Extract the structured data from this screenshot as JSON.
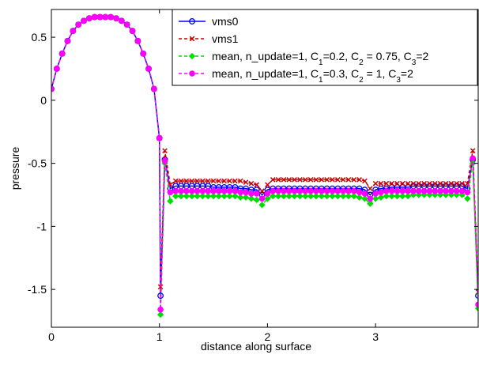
{
  "chart_data": {
    "type": "line",
    "title": "",
    "xlabel": "distance along surface",
    "ylabel": "pressure",
    "xlim": [
      0,
      3.95
    ],
    "ylim": [
      -1.8,
      0.72
    ],
    "xticks": [
      0,
      1,
      2,
      3
    ],
    "xtick_labels": [
      "0",
      "1",
      "2",
      "3"
    ],
    "yticks": [
      0.5,
      0,
      -0.5,
      -1,
      -1.5
    ],
    "ytick_labels": [
      "0.5",
      "0",
      "-0.5",
      "-1",
      "-1.5"
    ],
    "grid": false,
    "legend_position": "top-right",
    "legend": [
      {
        "text_pre": "vms0",
        "c1": "",
        "c2": "",
        "c3": ""
      },
      {
        "text_pre": "vms1",
        "c1": "",
        "c2": "",
        "c3": ""
      },
      {
        "text_pre": "mean, n_update=1, C",
        "c1": "=0.2, C",
        "c2": " = 0.75, C",
        "c3": "=2"
      },
      {
        "text_pre": "mean, n_update=1, C",
        "c1": "=0.3, C",
        "c2": " = 1, C",
        "c3": "=2"
      }
    ],
    "subscripts": [
      "1",
      "2",
      "3"
    ],
    "series": [
      {
        "name": "vms0",
        "color": "#0000ff",
        "dash": "solid",
        "marker": "circle-open",
        "x": [
          0,
          0.05,
          0.1,
          0.15,
          0.2,
          0.25,
          0.3,
          0.35,
          0.4,
          0.45,
          0.5,
          0.55,
          0.6,
          0.65,
          0.7,
          0.75,
          0.8,
          0.85,
          0.9,
          0.95,
          1.0,
          1.01,
          1.05,
          1.1,
          1.15,
          1.2,
          1.25,
          1.3,
          1.35,
          1.4,
          1.45,
          1.5,
          1.55,
          1.6,
          1.65,
          1.7,
          1.75,
          1.8,
          1.85,
          1.9,
          1.95,
          2.0,
          2.05,
          2.1,
          2.15,
          2.2,
          2.25,
          2.3,
          2.35,
          2.4,
          2.45,
          2.5,
          2.55,
          2.6,
          2.65,
          2.7,
          2.75,
          2.8,
          2.85,
          2.9,
          2.95,
          3.0,
          3.05,
          3.1,
          3.15,
          3.2,
          3.25,
          3.3,
          3.35,
          3.4,
          3.45,
          3.5,
          3.55,
          3.6,
          3.65,
          3.7,
          3.75,
          3.8,
          3.85,
          3.9,
          3.95
        ],
        "y": [
          0.09,
          0.25,
          0.37,
          0.47,
          0.55,
          0.6,
          0.63,
          0.65,
          0.66,
          0.66,
          0.66,
          0.66,
          0.65,
          0.63,
          0.6,
          0.55,
          0.47,
          0.37,
          0.25,
          0.09,
          -0.3,
          -1.55,
          -0.47,
          -0.7,
          -0.68,
          -0.68,
          -0.68,
          -0.68,
          -0.68,
          -0.68,
          -0.68,
          -0.69,
          -0.69,
          -0.69,
          -0.69,
          -0.69,
          -0.7,
          -0.7,
          -0.71,
          -0.71,
          -0.75,
          -0.71,
          -0.7,
          -0.7,
          -0.7,
          -0.7,
          -0.7,
          -0.7,
          -0.7,
          -0.7,
          -0.7,
          -0.7,
          -0.7,
          -0.7,
          -0.7,
          -0.7,
          -0.7,
          -0.7,
          -0.7,
          -0.71,
          -0.75,
          -0.71,
          -0.7,
          -0.7,
          -0.69,
          -0.69,
          -0.69,
          -0.69,
          -0.68,
          -0.68,
          -0.68,
          -0.68,
          -0.68,
          -0.68,
          -0.68,
          -0.68,
          -0.68,
          -0.68,
          -0.7,
          -0.47,
          -1.55
        ]
      },
      {
        "name": "vms1",
        "color": "#cc0000",
        "dash": "4,3",
        "marker": "x",
        "x": [
          0,
          0.05,
          0.1,
          0.15,
          0.2,
          0.25,
          0.3,
          0.35,
          0.4,
          0.45,
          0.5,
          0.55,
          0.6,
          0.65,
          0.7,
          0.75,
          0.8,
          0.85,
          0.9,
          0.95,
          1.0,
          1.01,
          1.05,
          1.1,
          1.15,
          1.2,
          1.25,
          1.3,
          1.35,
          1.4,
          1.45,
          1.5,
          1.55,
          1.6,
          1.65,
          1.7,
          1.75,
          1.8,
          1.85,
          1.9,
          1.95,
          2.0,
          2.05,
          2.1,
          2.15,
          2.2,
          2.25,
          2.3,
          2.35,
          2.4,
          2.45,
          2.5,
          2.55,
          2.6,
          2.65,
          2.7,
          2.75,
          2.8,
          2.85,
          2.9,
          2.95,
          3.0,
          3.05,
          3.1,
          3.15,
          3.2,
          3.25,
          3.3,
          3.35,
          3.4,
          3.45,
          3.5,
          3.55,
          3.6,
          3.65,
          3.7,
          3.75,
          3.8,
          3.85,
          3.9,
          3.95
        ],
        "y": [
          0.09,
          0.25,
          0.37,
          0.47,
          0.55,
          0.6,
          0.63,
          0.65,
          0.66,
          0.66,
          0.66,
          0.66,
          0.65,
          0.63,
          0.6,
          0.55,
          0.47,
          0.37,
          0.25,
          0.09,
          -0.3,
          -1.48,
          -0.4,
          -0.67,
          -0.64,
          -0.64,
          -0.64,
          -0.64,
          -0.64,
          -0.64,
          -0.64,
          -0.64,
          -0.64,
          -0.64,
          -0.64,
          -0.64,
          -0.64,
          -0.65,
          -0.66,
          -0.67,
          -0.72,
          -0.67,
          -0.63,
          -0.63,
          -0.63,
          -0.63,
          -0.63,
          -0.63,
          -0.63,
          -0.63,
          -0.63,
          -0.63,
          -0.63,
          -0.63,
          -0.63,
          -0.63,
          -0.63,
          -0.63,
          -0.63,
          -0.64,
          -0.7,
          -0.66,
          -0.66,
          -0.66,
          -0.66,
          -0.66,
          -0.66,
          -0.66,
          -0.66,
          -0.66,
          -0.66,
          -0.66,
          -0.66,
          -0.66,
          -0.66,
          -0.66,
          -0.66,
          -0.66,
          -0.66,
          -0.4,
          -1.52
        ]
      },
      {
        "name": "mean, n_update=1, C1=0.2, C2 = 0.75, C3=2",
        "color": "#00dd00",
        "dash": "4,3",
        "marker": "diamond",
        "x": [
          0,
          0.05,
          0.1,
          0.15,
          0.2,
          0.25,
          0.3,
          0.35,
          0.4,
          0.45,
          0.5,
          0.55,
          0.6,
          0.65,
          0.7,
          0.75,
          0.8,
          0.85,
          0.9,
          0.95,
          1.0,
          1.01,
          1.05,
          1.1,
          1.15,
          1.2,
          1.25,
          1.3,
          1.35,
          1.4,
          1.45,
          1.5,
          1.55,
          1.6,
          1.65,
          1.7,
          1.75,
          1.8,
          1.85,
          1.9,
          1.95,
          2.0,
          2.05,
          2.1,
          2.15,
          2.2,
          2.25,
          2.3,
          2.35,
          2.4,
          2.45,
          2.5,
          2.55,
          2.6,
          2.65,
          2.7,
          2.75,
          2.8,
          2.85,
          2.9,
          2.95,
          3.0,
          3.05,
          3.1,
          3.15,
          3.2,
          3.25,
          3.3,
          3.35,
          3.4,
          3.45,
          3.5,
          3.55,
          3.6,
          3.65,
          3.7,
          3.75,
          3.8,
          3.85,
          3.9,
          3.95
        ],
        "y": [
          0.09,
          0.25,
          0.37,
          0.47,
          0.55,
          0.6,
          0.63,
          0.65,
          0.66,
          0.66,
          0.66,
          0.66,
          0.65,
          0.63,
          0.6,
          0.55,
          0.47,
          0.37,
          0.25,
          0.09,
          -0.3,
          -1.7,
          -0.5,
          -0.8,
          -0.76,
          -0.76,
          -0.76,
          -0.76,
          -0.76,
          -0.76,
          -0.76,
          -0.76,
          -0.76,
          -0.76,
          -0.76,
          -0.76,
          -0.77,
          -0.77,
          -0.78,
          -0.79,
          -0.83,
          -0.78,
          -0.76,
          -0.76,
          -0.76,
          -0.76,
          -0.76,
          -0.76,
          -0.76,
          -0.76,
          -0.76,
          -0.76,
          -0.76,
          -0.76,
          -0.76,
          -0.76,
          -0.76,
          -0.76,
          -0.77,
          -0.78,
          -0.82,
          -0.78,
          -0.77,
          -0.76,
          -0.76,
          -0.76,
          -0.76,
          -0.76,
          -0.75,
          -0.75,
          -0.75,
          -0.75,
          -0.75,
          -0.75,
          -0.75,
          -0.75,
          -0.75,
          -0.75,
          -0.78,
          -0.5,
          -1.65
        ]
      },
      {
        "name": "mean, n_update=1, C1=0.3, C2 = 1, C3=2",
        "color": "#ff00ff",
        "dash": "4,3",
        "marker": "circle-filled",
        "x": [
          0,
          0.05,
          0.1,
          0.15,
          0.2,
          0.25,
          0.3,
          0.35,
          0.4,
          0.45,
          0.5,
          0.55,
          0.6,
          0.65,
          0.7,
          0.75,
          0.8,
          0.85,
          0.9,
          0.95,
          1.0,
          1.01,
          1.05,
          1.1,
          1.15,
          1.2,
          1.25,
          1.3,
          1.35,
          1.4,
          1.45,
          1.5,
          1.55,
          1.6,
          1.65,
          1.7,
          1.75,
          1.8,
          1.85,
          1.9,
          1.95,
          2.0,
          2.05,
          2.1,
          2.15,
          2.2,
          2.25,
          2.3,
          2.35,
          2.4,
          2.45,
          2.5,
          2.55,
          2.6,
          2.65,
          2.7,
          2.75,
          2.8,
          2.85,
          2.9,
          2.95,
          3.0,
          3.05,
          3.1,
          3.15,
          3.2,
          3.25,
          3.3,
          3.35,
          3.4,
          3.45,
          3.5,
          3.55,
          3.6,
          3.65,
          3.7,
          3.75,
          3.8,
          3.85,
          3.9,
          3.95
        ],
        "y": [
          0.09,
          0.25,
          0.37,
          0.47,
          0.55,
          0.6,
          0.63,
          0.65,
          0.66,
          0.66,
          0.66,
          0.66,
          0.65,
          0.63,
          0.6,
          0.55,
          0.47,
          0.37,
          0.25,
          0.09,
          -0.3,
          -1.66,
          -0.48,
          -0.73,
          -0.72,
          -0.72,
          -0.72,
          -0.72,
          -0.72,
          -0.72,
          -0.72,
          -0.72,
          -0.72,
          -0.72,
          -0.72,
          -0.72,
          -0.73,
          -0.73,
          -0.74,
          -0.74,
          -0.78,
          -0.74,
          -0.72,
          -0.72,
          -0.72,
          -0.72,
          -0.72,
          -0.72,
          -0.72,
          -0.72,
          -0.72,
          -0.72,
          -0.72,
          -0.72,
          -0.72,
          -0.72,
          -0.72,
          -0.72,
          -0.73,
          -0.74,
          -0.78,
          -0.74,
          -0.73,
          -0.72,
          -0.72,
          -0.72,
          -0.72,
          -0.72,
          -0.72,
          -0.72,
          -0.72,
          -0.72,
          -0.72,
          -0.72,
          -0.72,
          -0.72,
          -0.72,
          -0.72,
          -0.73,
          -0.46,
          -1.62
        ]
      }
    ]
  }
}
